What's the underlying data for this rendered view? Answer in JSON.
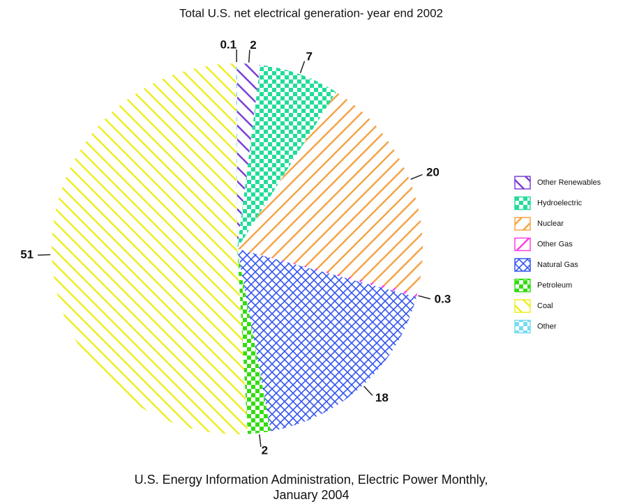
{
  "chart_data": {
    "type": "pie",
    "title": "Total U.S. net electrical generation- year end 2002",
    "source": [
      "U.S. Energy Information Administration, Electric Power Monthly,",
      "January 2004"
    ],
    "categories": [
      "Other Renewables",
      "Hydroelectric",
      "Nuclear",
      "Other Gas",
      "Natural Gas",
      "Petroleum",
      "Coal",
      "Other"
    ],
    "values": [
      2,
      7,
      20,
      0.3,
      18,
      2,
      51,
      0.1
    ],
    "colors": [
      "#7b3fd6",
      "#22dd99",
      "#f5a447",
      "#ff3fe6",
      "#3355ee",
      "#33dd11",
      "#eeee22",
      "#77ddf2"
    ],
    "patterns": [
      "diag-down",
      "checker",
      "diag-up",
      "diag-up",
      "cross",
      "checker",
      "diag-down",
      "checker"
    ],
    "legend": "right"
  }
}
